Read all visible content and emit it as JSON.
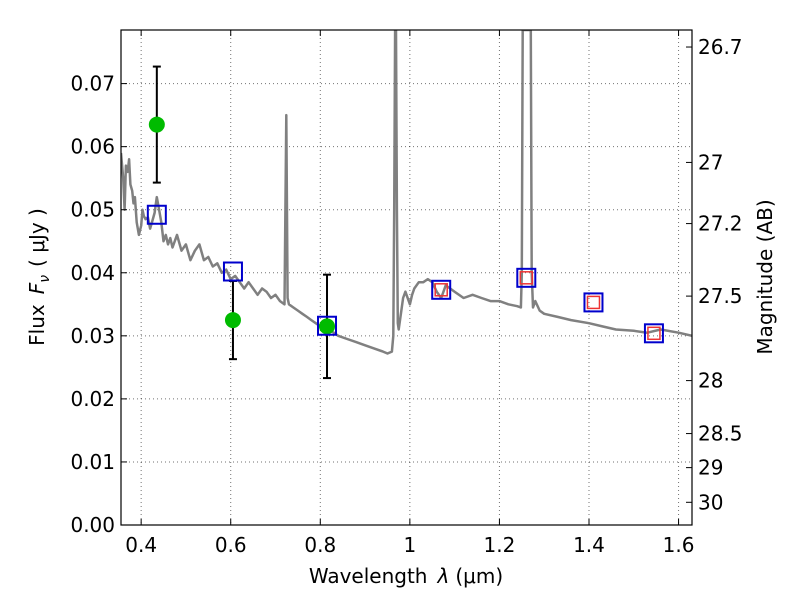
{
  "chart_data": {
    "type": "scatter",
    "title": "",
    "xlabel_prefix": "Wavelength",
    "xlabel_symbol": "λ",
    "xlabel_unit": "(μm)",
    "ylabel_prefix": "Flux",
    "ylabel_symbol": "F",
    "ylabel_subscript": "ν",
    "ylabel_unit": "( μJy )",
    "y2label": "Magnitude (AB)",
    "xlim": [
      0.355,
      1.63
    ],
    "ylim": [
      0.0,
      0.0785
    ],
    "grid": true,
    "x_ticks": [
      0.4,
      0.6,
      0.8,
      1.0,
      1.2,
      1.4,
      1.6
    ],
    "x_tick_labels": [
      "0.4",
      "0.6",
      "0.8",
      "1",
      "1.2",
      "1.4",
      "1.6"
    ],
    "y_ticks": [
      0.0,
      0.01,
      0.02,
      0.03,
      0.04,
      0.05,
      0.06,
      0.07
    ],
    "y_tick_labels": [
      "0.00",
      "0.01",
      "0.02",
      "0.03",
      "0.04",
      "0.05",
      "0.06",
      "0.07"
    ],
    "y2_ticks": [
      {
        "label": "26.7",
        "flux": 0.0758
      },
      {
        "label": "27",
        "flux": 0.0575
      },
      {
        "label": "27.2",
        "flux": 0.0478
      },
      {
        "label": "27.5",
        "flux": 0.0363
      },
      {
        "label": "28",
        "flux": 0.0229
      },
      {
        "label": "28.5",
        "flux": 0.0145
      },
      {
        "label": "29",
        "flux": 0.0091
      },
      {
        "label": "30",
        "flux": 0.0036
      }
    ],
    "colors": {
      "model": "#808080",
      "observed": "#00bb00",
      "synthetic_box": "#0000cc",
      "inner_box": "#ee3333",
      "errorbar": "#000000"
    },
    "series": [
      {
        "kind": "line",
        "x": [
          0.355,
          0.36,
          0.363,
          0.366,
          0.37,
          0.373,
          0.376,
          0.38,
          0.383,
          0.386,
          0.39,
          0.395,
          0.4,
          0.403,
          0.406,
          0.41,
          0.415,
          0.42,
          0.425,
          0.43,
          0.435,
          0.44,
          0.445,
          0.45,
          0.455,
          0.46,
          0.465,
          0.47,
          0.48,
          0.49,
          0.5,
          0.51,
          0.52,
          0.53,
          0.54,
          0.55,
          0.56,
          0.57,
          0.58,
          0.59,
          0.6,
          0.61,
          0.62,
          0.63,
          0.64,
          0.65,
          0.66,
          0.67,
          0.68,
          0.69,
          0.7,
          0.71,
          0.72,
          0.724,
          0.727,
          0.73,
          0.74,
          0.75,
          0.76,
          0.77,
          0.78,
          0.79,
          0.8,
          0.82,
          0.84,
          0.86,
          0.88,
          0.9,
          0.92,
          0.94,
          0.95,
          0.96,
          0.963,
          0.965,
          0.967,
          0.969,
          0.971,
          0.973,
          0.975,
          0.98,
          0.985,
          0.99,
          1.0,
          1.005,
          1.01,
          1.02,
          1.03,
          1.04,
          1.05,
          1.06,
          1.07,
          1.08,
          1.09,
          1.1,
          1.12,
          1.14,
          1.16,
          1.18,
          1.2,
          1.22,
          1.24,
          1.248,
          1.25,
          1.252,
          1.255,
          1.26,
          1.265,
          1.268,
          1.27,
          1.272,
          1.275,
          1.28,
          1.29,
          1.3,
          1.33,
          1.36,
          1.4,
          1.43,
          1.46,
          1.5,
          1.53,
          1.56,
          1.6,
          1.63
        ],
        "y": [
          0.059,
          0.055,
          0.05,
          0.057,
          0.056,
          0.058,
          0.054,
          0.053,
          0.051,
          0.052,
          0.048,
          0.046,
          0.0475,
          0.05,
          0.049,
          0.0485,
          0.0488,
          0.047,
          0.0482,
          0.0495,
          0.052,
          0.05,
          0.048,
          0.045,
          0.046,
          0.0445,
          0.0455,
          0.044,
          0.046,
          0.0435,
          0.0445,
          0.042,
          0.0435,
          0.0445,
          0.042,
          0.0425,
          0.041,
          0.0415,
          0.04,
          0.0405,
          0.039,
          0.0395,
          0.0385,
          0.0375,
          0.0385,
          0.0375,
          0.0365,
          0.0375,
          0.037,
          0.036,
          0.0365,
          0.0355,
          0.035,
          0.065,
          0.036,
          0.035,
          0.0345,
          0.034,
          0.0335,
          0.033,
          0.0325,
          0.032,
          0.0315,
          0.031,
          0.03,
          0.0295,
          0.029,
          0.0285,
          0.028,
          0.0275,
          0.0272,
          0.0275,
          0.03,
          0.05,
          0.0785,
          0.0785,
          0.05,
          0.032,
          0.031,
          0.0335,
          0.036,
          0.037,
          0.035,
          0.0365,
          0.0375,
          0.0385,
          0.0385,
          0.039,
          0.0385,
          0.037,
          0.036,
          0.038,
          0.0375,
          0.037,
          0.036,
          0.0365,
          0.036,
          0.0355,
          0.0355,
          0.035,
          0.0347,
          0.0345,
          0.04,
          0.0785,
          0.0785,
          0.0785,
          0.0785,
          0.0785,
          0.0785,
          0.04,
          0.0345,
          0.0355,
          0.034,
          0.0335,
          0.033,
          0.0325,
          0.032,
          0.0315,
          0.031,
          0.0308,
          0.0305,
          0.031,
          0.0305,
          0.03
        ]
      },
      {
        "kind": "points-with-errors",
        "x": [
          0.435,
          0.605,
          0.815
        ],
        "y": [
          0.0635,
          0.0325,
          0.0315
        ],
        "yerr": [
          0.0092,
          0.0062,
          0.0082
        ]
      },
      {
        "kind": "squares",
        "x": [
          0.435,
          0.605,
          0.815,
          1.07,
          1.26,
          1.41,
          1.545
        ],
        "y": [
          0.0492,
          0.0402,
          0.0316,
          0.0373,
          0.0392,
          0.0353,
          0.0304
        ]
      },
      {
        "kind": "inner-squares",
        "x": [
          1.07,
          1.26,
          1.41,
          1.545
        ],
        "y": [
          0.0373,
          0.0392,
          0.0353,
          0.0304
        ]
      }
    ]
  }
}
